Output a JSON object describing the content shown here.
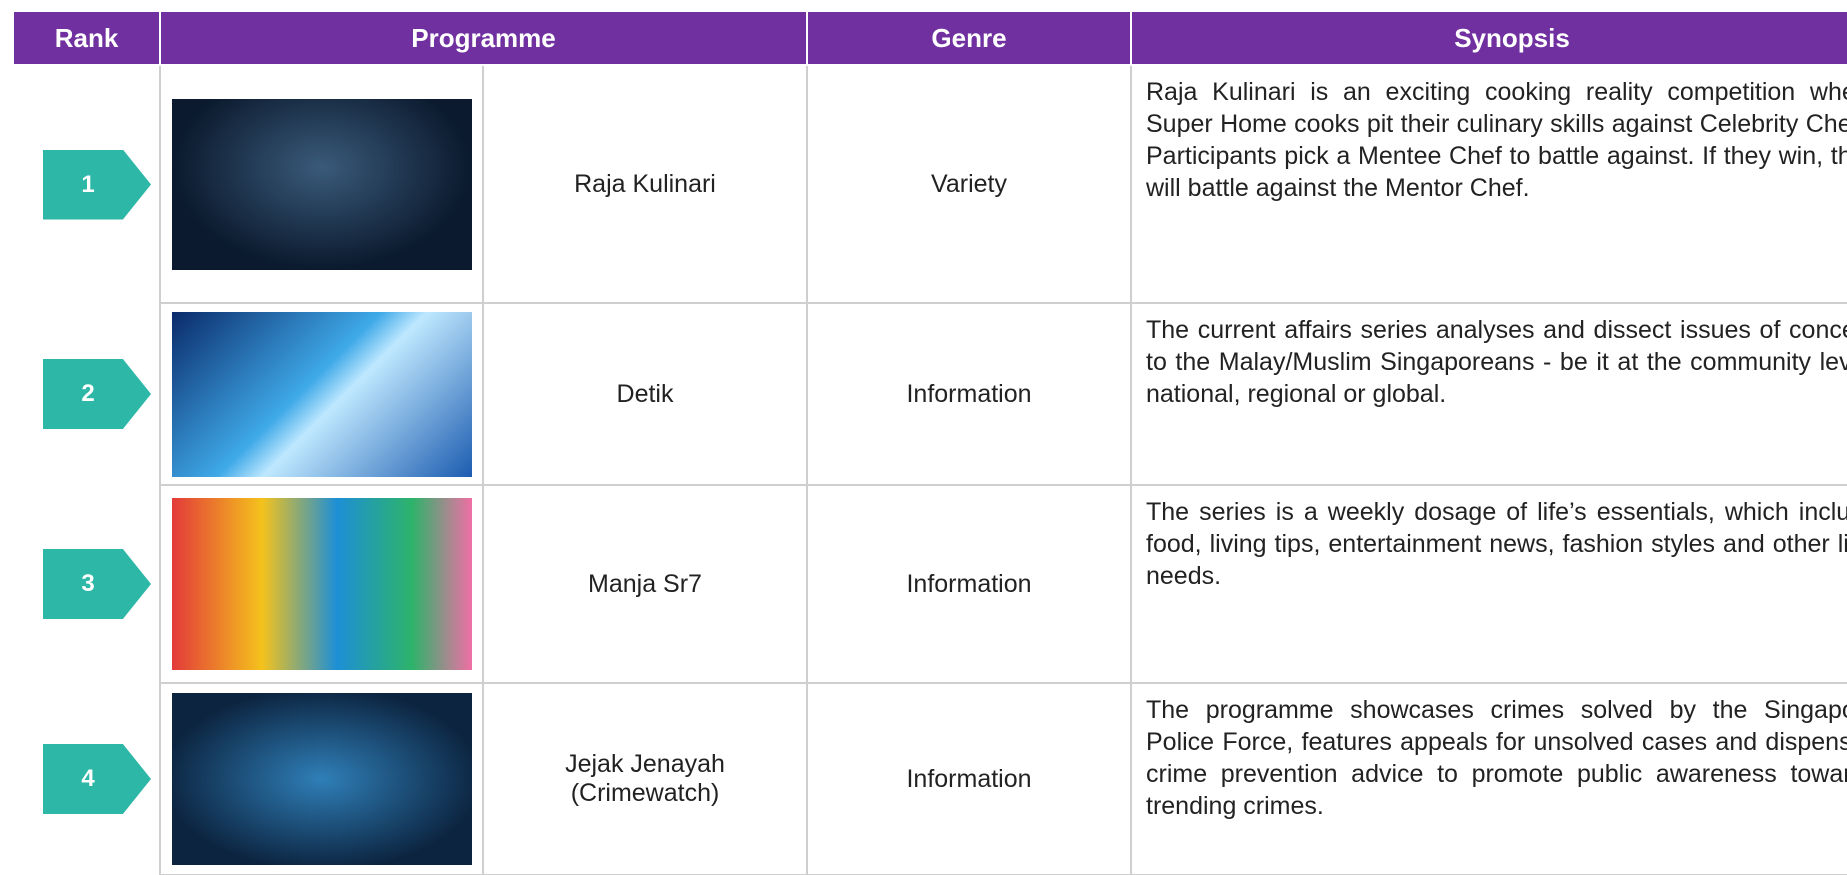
{
  "table": {
    "headers": [
      "Rank",
      "Programme",
      "Genre",
      "Synopsis"
    ],
    "rows": [
      {
        "rank": "1",
        "programme": "Raja Kulinari",
        "genre": "Variety",
        "synopsis": "Raja Kulinari is an exciting cooking reality competition where Super Home cooks pit their culinary skills against Celebrity Chefs. Participants pick a Mentee Chef to battle against. If they win, they will battle against the Mentor Chef."
      },
      {
        "rank": "2",
        "programme": "Detik",
        "genre": "Information",
        "synopsis": "The current affairs series analyses and dissect issues of concern to the Malay/Muslim Singaporeans - be it at the community level, national, regional or global."
      },
      {
        "rank": "3",
        "programme": "Manja Sr7",
        "genre": "Information",
        "synopsis": "The series is a weekly dosage of life’s essentials, which include food, living tips, entertainment news, fashion styles and other life-needs."
      },
      {
        "rank": "4",
        "programme": "Jejak Jenayah (Crimewatch)",
        "genre": "Information",
        "synopsis": "The programme showcases crimes solved by the Singapore Police Force, features appeals for unsolved cases and dispenses crime prevention advice to promote public awareness towards trending crimes."
      }
    ]
  }
}
